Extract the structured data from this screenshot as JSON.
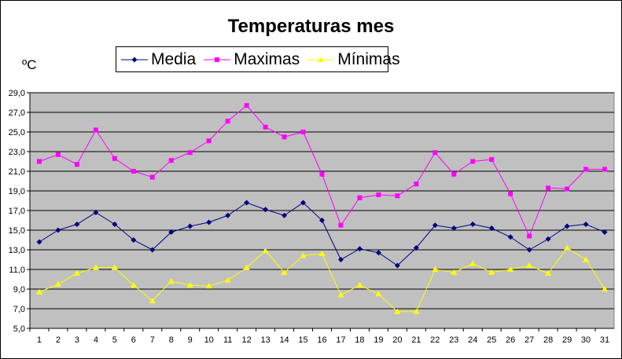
{
  "chart_data": {
    "type": "line",
    "title": "Temperaturas mes",
    "xlabel": "",
    "ylabel": "ºC",
    "x": [
      1,
      2,
      3,
      4,
      5,
      6,
      7,
      8,
      9,
      10,
      11,
      12,
      13,
      14,
      15,
      16,
      17,
      18,
      19,
      20,
      21,
      22,
      23,
      24,
      25,
      26,
      27,
      28,
      29,
      30,
      31
    ],
    "ylim": [
      5.0,
      29.0
    ],
    "yticks": [
      "5,0",
      "7,0",
      "9,0",
      "11,0",
      "13,0",
      "15,0",
      "17,0",
      "19,0",
      "21,0",
      "23,0",
      "25,0",
      "27,0",
      "29,0"
    ],
    "ytick_values": [
      5,
      7,
      9,
      11,
      13,
      15,
      17,
      19,
      21,
      23,
      25,
      27,
      29
    ],
    "grid": true,
    "legend_position": "top",
    "plot_bg": "#c0c0c0",
    "series": [
      {
        "name": "Media",
        "color": "#000080",
        "marker": "diamond",
        "values": [
          13.8,
          15.0,
          15.6,
          16.8,
          15.6,
          14.0,
          13.0,
          14.8,
          15.4,
          15.8,
          16.5,
          17.8,
          17.1,
          16.5,
          17.8,
          16.0,
          12.0,
          13.1,
          12.7,
          11.4,
          13.2,
          15.5,
          15.2,
          15.6,
          15.2,
          14.3,
          13.0,
          14.1,
          15.4,
          15.6,
          14.8
        ]
      },
      {
        "name": "Maximas",
        "color": "#ff00ff",
        "marker": "square",
        "values": [
          22.0,
          22.7,
          21.7,
          25.2,
          22.3,
          21.0,
          20.4,
          22.1,
          22.9,
          24.1,
          26.1,
          27.7,
          25.5,
          24.5,
          25.0,
          20.7,
          15.5,
          18.3,
          18.6,
          18.5,
          19.7,
          22.9,
          20.7,
          22.0,
          22.2,
          18.7,
          14.4,
          19.3,
          19.2,
          21.2,
          21.2
        ]
      },
      {
        "name": "Mínimas",
        "color": "#ffff00",
        "marker": "triangle",
        "values": [
          8.7,
          9.5,
          10.6,
          11.2,
          11.2,
          9.4,
          7.8,
          9.8,
          9.4,
          9.3,
          9.9,
          11.2,
          12.9,
          10.7,
          12.4,
          12.6,
          8.4,
          9.4,
          8.5,
          6.7,
          6.7,
          11.0,
          10.7,
          11.6,
          10.7,
          11.0,
          11.4,
          10.6,
          13.2,
          12.0,
          9.0
        ]
      }
    ]
  }
}
